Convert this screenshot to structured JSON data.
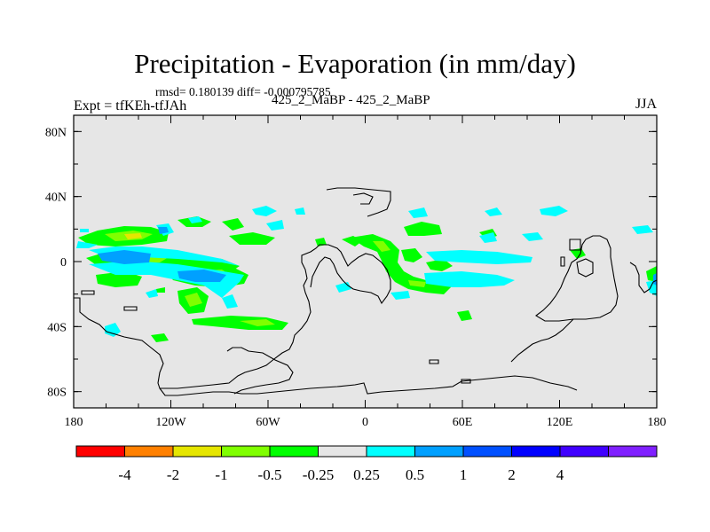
{
  "title": "Precipitation - Evaporation (in mm/day)",
  "stats": "rmsd= 0.180139  diff= -0.000795785",
  "left_label": "Expt = tfKEh-tfJAh",
  "center_label": "425_2_MaBP - 425_2_MaBP",
  "right_label": "JJA",
  "map": {
    "projection": "cylindrical-equidistant",
    "lon_range": [
      -180,
      180
    ],
    "lat_range": [
      -90,
      90
    ],
    "lat_ticks": [
      {
        "lat": 80,
        "label": "80N"
      },
      {
        "lat": 40,
        "label": "40N"
      },
      {
        "lat": 0,
        "label": "0"
      },
      {
        "lat": -40,
        "label": "40S"
      },
      {
        "lat": -80,
        "label": "80S"
      }
    ],
    "lon_ticks": [
      {
        "lon": -180,
        "label": "180"
      },
      {
        "lon": -120,
        "label": "120W"
      },
      {
        "lon": -60,
        "label": "60W"
      },
      {
        "lon": 0,
        "label": "0"
      },
      {
        "lon": 60,
        "label": "60E"
      },
      {
        "lon": 120,
        "label": "120E"
      },
      {
        "lon": 180,
        "label": "180"
      }
    ],
    "background_color": "#e6e6e6"
  },
  "colorbar": {
    "colors": [
      "#ff0000",
      "#ff8000",
      "#e6e600",
      "#80ff00",
      "#00ff00",
      "#e6e6e6",
      "#00ffff",
      "#00a0ff",
      "#0050ff",
      "#0000ff",
      "#4000ff",
      "#8020ff"
    ],
    "labels": [
      "-4",
      "-2",
      "-1",
      "-0.5",
      "-0.25",
      "0.25",
      "0.5",
      "1",
      "2",
      "4"
    ]
  }
}
